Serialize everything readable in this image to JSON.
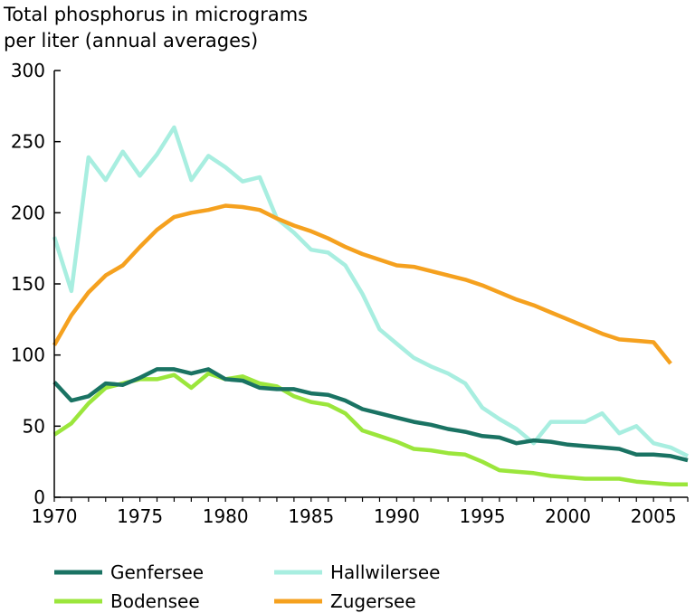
{
  "chart_data": {
    "type": "line",
    "title": "",
    "ylabel_lines": [
      "Total phosphorus in micrograms",
      "per liter (annual averages)"
    ],
    "xlabel": "",
    "xlim": [
      1970,
      2007
    ],
    "ylim": [
      0,
      300
    ],
    "x_ticks": [
      1970,
      1975,
      1980,
      1985,
      1990,
      1995,
      2000,
      2005
    ],
    "y_ticks": [
      0,
      50,
      100,
      150,
      200,
      250,
      300
    ],
    "grid": false,
    "legend_position": "bottom",
    "x": [
      1970,
      1971,
      1972,
      1973,
      1974,
      1975,
      1976,
      1977,
      1978,
      1979,
      1980,
      1981,
      1982,
      1983,
      1984,
      1985,
      1986,
      1987,
      1988,
      1989,
      1990,
      1991,
      1992,
      1993,
      1994,
      1995,
      1996,
      1997,
      1998,
      1999,
      2000,
      2001,
      2002,
      2003,
      2004,
      2005,
      2006,
      2007
    ],
    "series": [
      {
        "name": "Genfersee",
        "color": "#1a7363",
        "values": [
          81,
          68,
          71,
          80,
          79,
          84,
          90,
          90,
          87,
          90,
          83,
          82,
          77,
          76,
          76,
          73,
          72,
          68,
          62,
          59,
          56,
          53,
          51,
          48,
          46,
          43,
          42,
          38,
          40,
          39,
          37,
          36,
          35,
          34,
          30,
          30,
          29,
          26
        ]
      },
      {
        "name": "Bodensee",
        "color": "#9be63c",
        "values": [
          44,
          52,
          66,
          77,
          80,
          83,
          83,
          86,
          77,
          87,
          83,
          85,
          80,
          78,
          71,
          67,
          65,
          59,
          47,
          43,
          39,
          34,
          33,
          31,
          30,
          25,
          19,
          18,
          17,
          15,
          14,
          13,
          13,
          13,
          11,
          10,
          9,
          9
        ]
      },
      {
        "name": "Hallwilersee",
        "color": "#a8eee0",
        "values": [
          183,
          145,
          239,
          223,
          243,
          226,
          241,
          260,
          223,
          240,
          232,
          222,
          225,
          196,
          186,
          174,
          172,
          163,
          143,
          118,
          108,
          98,
          92,
          87,
          80,
          63,
          55,
          48,
          38,
          53,
          53,
          53,
          59,
          45,
          50,
          38,
          35,
          29
        ]
      },
      {
        "name": "Zugersee",
        "color": "#f5a11f",
        "values": [
          107,
          128,
          144,
          156,
          163,
          176,
          188,
          197,
          200,
          202,
          205,
          204,
          202,
          196,
          191,
          187,
          182,
          176,
          171,
          167,
          163,
          162,
          159,
          156,
          153,
          149,
          144,
          139,
          135,
          130,
          125,
          120,
          115,
          111,
          110,
          109,
          94,
          null
        ]
      }
    ]
  }
}
